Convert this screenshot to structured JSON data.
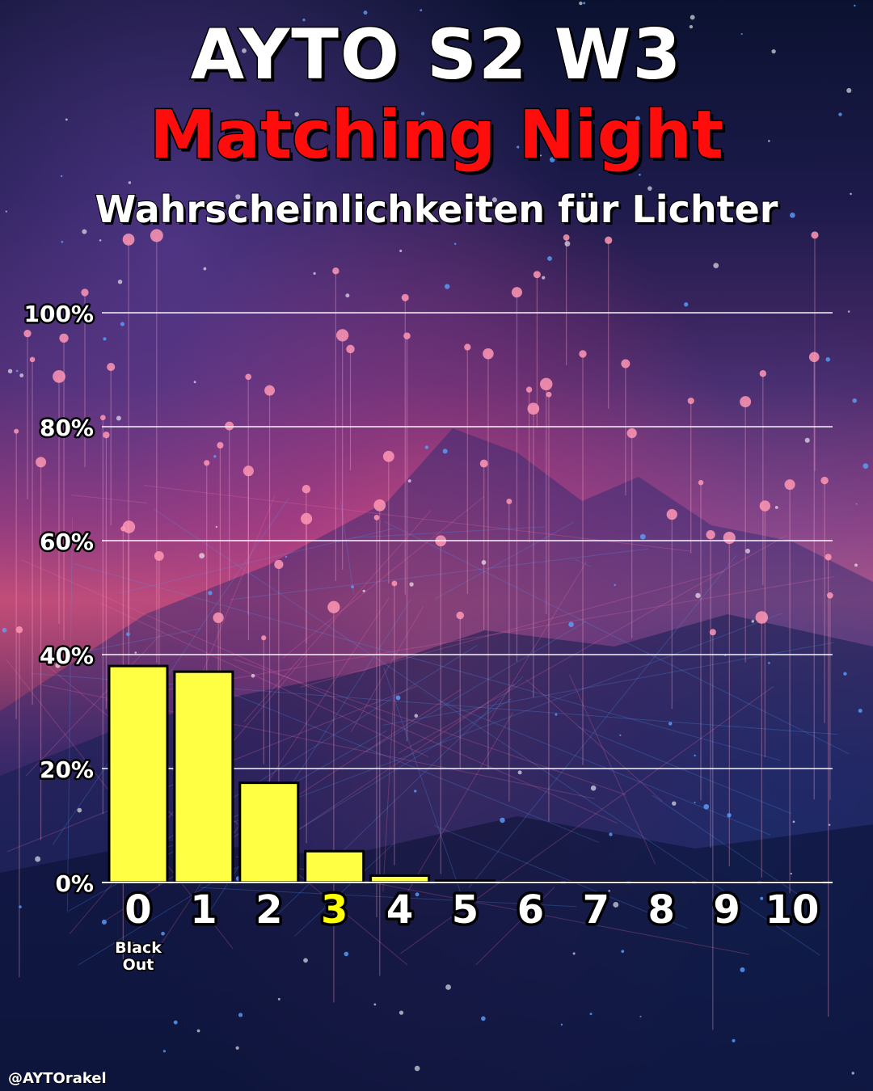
{
  "header": {
    "title": "AYTO S2 W3",
    "subtitle": "Matching Night",
    "description": "Wahrscheinlichkeiten für Lichter"
  },
  "footer": {
    "handle": "@AYTOrakel"
  },
  "colors": {
    "bar_fill": "#ffff44",
    "highlight_tick": "#ffff00",
    "subtitle": "#ff0d0d",
    "gridline": "#ffffff"
  },
  "chart_data": {
    "type": "bar",
    "title": "Wahrscheinlichkeiten für Lichter",
    "categories": [
      "0",
      "1",
      "2",
      "3",
      "4",
      "5",
      "6",
      "7",
      "8",
      "9",
      "10"
    ],
    "category_notes": {
      "0": "Black Out"
    },
    "highlighted_category": "3",
    "values": [
      38,
      37,
      17.5,
      5.5,
      1.2,
      0.3,
      0.05,
      0,
      0,
      0,
      0
    ],
    "ylim": [
      0,
      100
    ],
    "yticks": [
      0,
      20,
      40,
      60,
      80,
      100
    ],
    "ytick_labels": [
      "0%",
      "20%",
      "40%",
      "60%",
      "80%",
      "100%"
    ],
    "grid": true,
    "legend": "none"
  }
}
